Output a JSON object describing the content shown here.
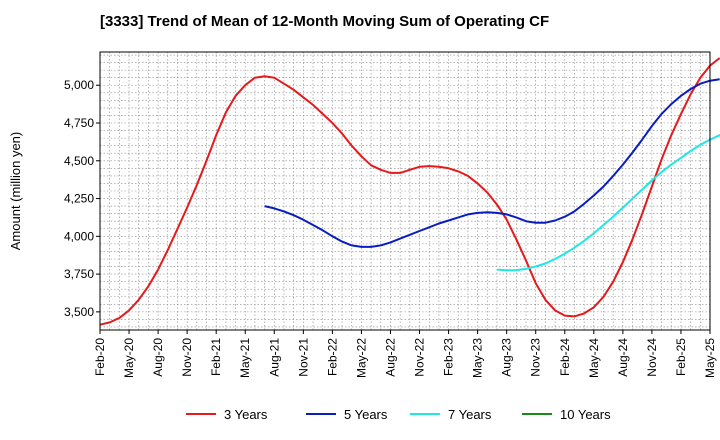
{
  "chart_data": {
    "type": "line",
    "title": "[3333]  Trend of Mean of 12-Month Moving Sum of Operating CF",
    "xlabel": "",
    "ylabel": "Amount (million yen)",
    "ylim": [
      3380,
      5220
    ],
    "yticks": [
      3500,
      3750,
      4000,
      4250,
      4500,
      4750,
      5000
    ],
    "ytick_labels": [
      "3,500",
      "3,750",
      "4,000",
      "4,250",
      "4,500",
      "4,750",
      "5,000"
    ],
    "x_start": "2020-02",
    "x_end": "2025-05",
    "xticks": [
      "Feb-20",
      "May-20",
      "Aug-20",
      "Nov-20",
      "Feb-21",
      "May-21",
      "Aug-21",
      "Nov-21",
      "Feb-22",
      "May-22",
      "Aug-22",
      "Nov-22",
      "Feb-23",
      "May-23",
      "Aug-23",
      "Nov-23",
      "Feb-24",
      "May-24",
      "Aug-24",
      "Nov-24",
      "Feb-25",
      "May-25"
    ],
    "grid": true,
    "legend_position": "bottom",
    "series": [
      {
        "name": "3 Years",
        "color": "#e41a1c",
        "start": "2020-02",
        "values": [
          3415,
          3430,
          3460,
          3510,
          3580,
          3670,
          3780,
          3910,
          4050,
          4190,
          4340,
          4500,
          4670,
          4820,
          4930,
          5000,
          5050,
          5060,
          5050,
          5010,
          4970,
          4920,
          4870,
          4810,
          4750,
          4680,
          4600,
          4530,
          4470,
          4440,
          4420,
          4420,
          4440,
          4460,
          4465,
          4460,
          4450,
          4430,
          4400,
          4350,
          4290,
          4210,
          4110,
          3980,
          3840,
          3690,
          3580,
          3510,
          3475,
          3470,
          3490,
          3530,
          3600,
          3700,
          3830,
          3980,
          4150,
          4330,
          4510,
          4670,
          4810,
          4940,
          5050,
          5130,
          5180
        ]
      },
      {
        "name": "5 Years",
        "color": "#0a1ebf",
        "start": "2021-07",
        "values": [
          4200,
          4185,
          4165,
          4140,
          4110,
          4075,
          4040,
          4000,
          3965,
          3940,
          3930,
          3930,
          3940,
          3960,
          3985,
          4010,
          4035,
          4060,
          4085,
          4105,
          4125,
          4145,
          4155,
          4160,
          4155,
          4145,
          4125,
          4100,
          4090,
          4090,
          4105,
          4130,
          4165,
          4215,
          4270,
          4330,
          4400,
          4475,
          4555,
          4640,
          4730,
          4810,
          4875,
          4930,
          4975,
          5010,
          5030,
          5040
        ]
      },
      {
        "name": "7 Years",
        "color": "#20e6e6",
        "start": "2023-07",
        "values": [
          3780,
          3775,
          3775,
          3785,
          3800,
          3820,
          3850,
          3885,
          3925,
          3970,
          4020,
          4075,
          4130,
          4190,
          4250,
          4310,
          4370,
          4425,
          4475,
          4520,
          4565,
          4605,
          4640,
          4670,
          4690
        ]
      },
      {
        "name": "10 Years",
        "color": "#1a8a1a",
        "start": "",
        "values": []
      }
    ]
  }
}
